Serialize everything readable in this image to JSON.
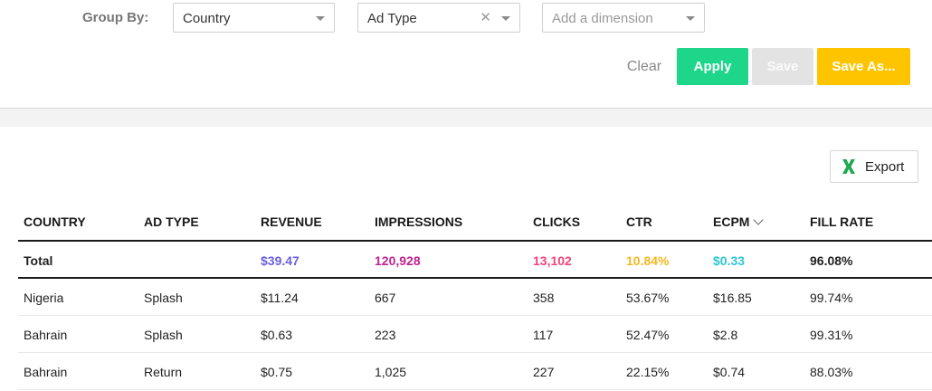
{
  "filters": {
    "group_by_label": "Group By:",
    "dimensions": [
      {
        "value": "Country",
        "clearable": false
      },
      {
        "value": "Ad Type",
        "clearable": true
      },
      {
        "placeholder": "Add a dimension"
      }
    ]
  },
  "actions": {
    "clear": "Clear",
    "apply": "Apply",
    "save": "Save",
    "save_as": "Save As..."
  },
  "export": {
    "label": "Export",
    "icon": "excel-icon"
  },
  "table": {
    "columns": [
      "COUNTRY",
      "AD TYPE",
      "REVENUE",
      "IMPRESSIONS",
      "CLICKS",
      "CTR",
      "ECPM",
      "FILL RATE"
    ],
    "sorted_column": "ECPM",
    "sort_direction": "descending",
    "total": {
      "label": "Total",
      "values": [
        "",
        "$39.47",
        "120,928",
        "13,102",
        "10.84%",
        "$0.33",
        "96.08%"
      ],
      "colors": [
        "#222222",
        "#6b5fe0",
        "#c0248f",
        "#f0457c",
        "#f5b820",
        "#2dc5d5",
        "#222222"
      ]
    },
    "rows": [
      [
        "Nigeria",
        "Splash",
        "$11.24",
        "667",
        "358",
        "53.67%",
        "$16.85",
        "99.74%"
      ],
      [
        "Bahrain",
        "Splash",
        "$0.63",
        "223",
        "117",
        "52.47%",
        "$2.8",
        "99.31%"
      ],
      [
        "Bahrain",
        "Return",
        "$0.75",
        "1,025",
        "227",
        "22.15%",
        "$0.74",
        "88.03%"
      ]
    ]
  },
  "colors": {
    "apply": "#1dd68a",
    "save_disabled": "#e3e3e3",
    "save_as": "#ffc400",
    "excel_green": "#1fa84f"
  }
}
